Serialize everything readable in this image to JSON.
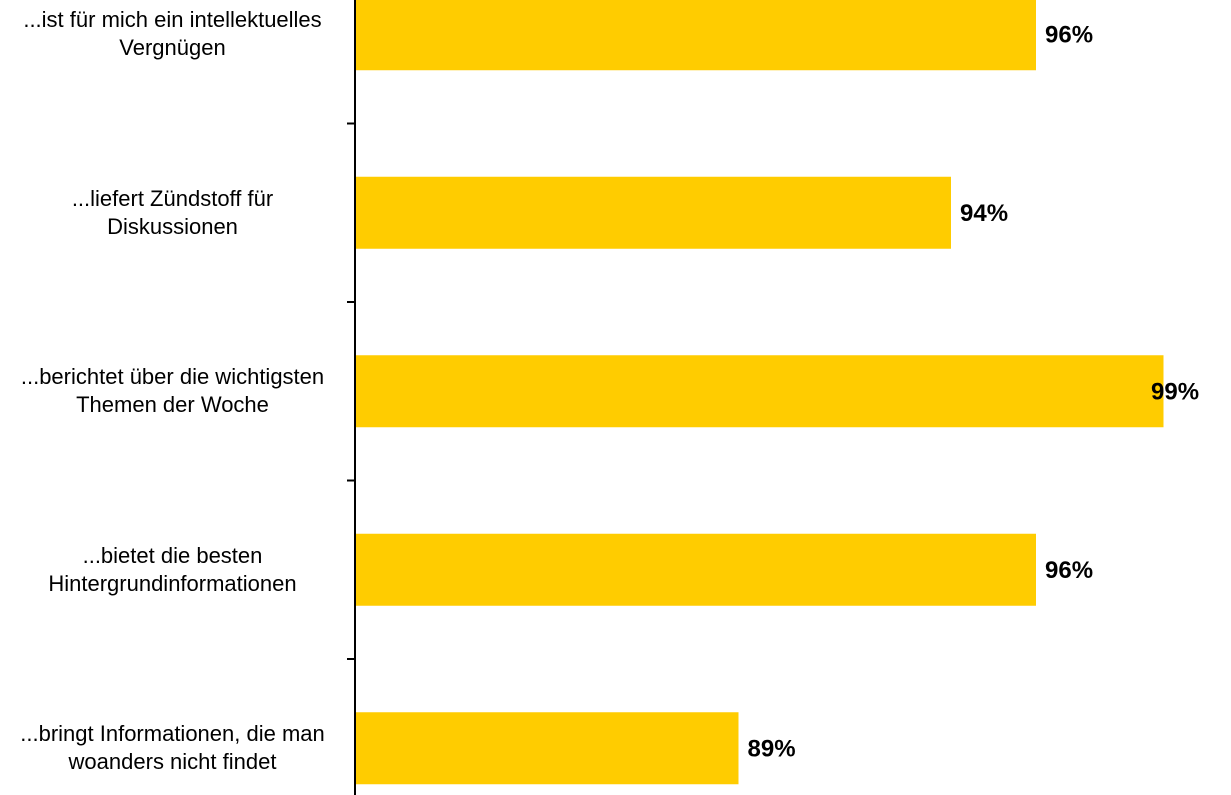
{
  "chart_data": {
    "type": "barh",
    "categories": [
      "...ist für mich ein intellektuelles Vergnügen",
      "...liefert Zündstoff für Diskussionen",
      "...berichtet über die wichtigsten Themen der Woche",
      "...bietet die besten Hintergrundinformationen",
      "...bringt Informationen, die man woanders nicht findet"
    ],
    "values": [
      96,
      94,
      99,
      96,
      89
    ],
    "value_labels": [
      "96%",
      "94%",
      "99%",
      "96%",
      "89%"
    ],
    "color": "#ffcc00",
    "xlim": [
      80,
      100
    ]
  }
}
